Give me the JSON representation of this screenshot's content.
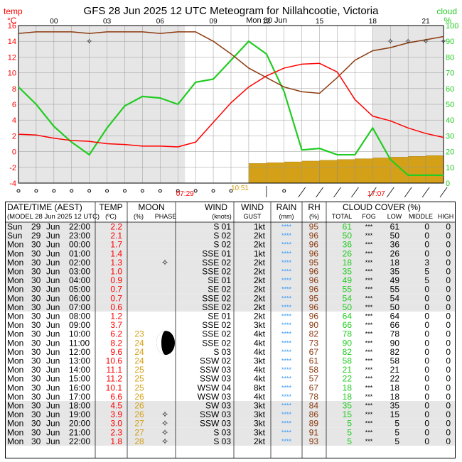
{
  "colors": {
    "temp": "#ff0000",
    "rh": "#8b3a0f",
    "cloud": "#22cc22",
    "rain": "#d4a017",
    "moon": "#d4a017",
    "rainStars": "#3399ff",
    "shade": "#e6e6e6",
    "frame": "#000000"
  },
  "chart_data": {
    "type": "line",
    "title": "GFS  28 Jun 2025 12 UTC  Meteogram for Nillahcootie, Victoria",
    "date_label": "Mon 30 Jun",
    "left_axis": {
      "label1": "temp",
      "label2": "°C",
      "ticks": [
        16,
        14,
        12,
        10,
        8,
        6,
        4,
        2,
        0,
        -2,
        -4
      ],
      "ylim": [
        -4,
        16
      ]
    },
    "right_axis": {
      "label1": "cloud",
      "label2": "%",
      "ticks": [
        100,
        90,
        80,
        70,
        60,
        50,
        40,
        30,
        20,
        10,
        0
      ],
      "ylim": [
        0,
        100
      ]
    },
    "x_ticks": [
      "00",
      "03",
      "06",
      "09",
      "12",
      "15",
      "18",
      "21"
    ],
    "x_tick_hours": [
      2,
      5,
      8,
      11,
      14,
      17,
      20,
      23
    ],
    "moonrise": "07:29",
    "moonset": "10:51",
    "sunset": "17:07",
    "hours": [
      0,
      1,
      2,
      3,
      4,
      5,
      6,
      7,
      8,
      9,
      10,
      11,
      12,
      13,
      14,
      15,
      16,
      17,
      18,
      19,
      20,
      21,
      22,
      23,
      24
    ],
    "series": [
      {
        "name": "temp",
        "values": [
          2.2,
          2.1,
          1.7,
          1.4,
          1.3,
          1.0,
          0.9,
          0.7,
          0.7,
          0.6,
          1.2,
          3.7,
          6.2,
          8.2,
          9.6,
          10.6,
          11.1,
          11.2,
          10.1,
          6.6,
          4.5,
          3.9,
          3.0,
          2.3,
          1.8
        ]
      },
      {
        "name": "rh",
        "values": [
          95,
          96,
          96,
          96,
          95,
          96,
          96,
          96,
          95,
          96,
          96,
          90,
          82,
          73,
          67,
          61,
          58,
          57,
          67,
          78,
          84,
          86,
          89,
          91,
          93
        ]
      },
      {
        "name": "cloud",
        "values": [
          61,
          50,
          36,
          26,
          18,
          35,
          49,
          55,
          54,
          50,
          64,
          66,
          78,
          90,
          82,
          58,
          21,
          22,
          18,
          18,
          35,
          15,
          5,
          5,
          5
        ]
      },
      {
        "name": "rain",
        "values": [
          0,
          0,
          0,
          0,
          0,
          0,
          0,
          0,
          0,
          0,
          0,
          0,
          0,
          2.5,
          2.6,
          2.7,
          2.8,
          2.9,
          3.0,
          3.1,
          3.2,
          3.3,
          3.4,
          3.5,
          3.6
        ]
      }
    ],
    "sky_symbols": [
      "circle",
      "circle",
      "circle",
      "circle",
      "circle",
      "circle",
      "circle",
      "circle",
      "circle",
      "circle",
      "circle",
      "circle",
      "circle",
      "none",
      "none",
      "circle",
      "none",
      "none",
      "none",
      "none",
      "none",
      "none",
      "none",
      "none",
      "none"
    ],
    "wind_barbs": [
      "none",
      "none",
      "none",
      "none",
      "none",
      "none",
      "none",
      "none",
      "none",
      "none",
      "none",
      "none",
      "none",
      "none",
      "north",
      "none",
      "ne",
      "ne",
      "ne",
      "ne",
      "ne",
      "ne",
      "ne",
      "ne",
      "ne"
    ]
  },
  "table": {
    "header1": {
      "datetime": "DATE/TIME (AEST)",
      "temp": "TEMP",
      "moon": "MOON",
      "wind": "WIND",
      "wind2": "WIND",
      "rain": "RAIN",
      "rh": "RH",
      "cloud": "CLOUD COVER (%)"
    },
    "header2": {
      "model": "(MODEL 28 Jun 2025 12 UTC)",
      "temp_unit": "(ºC)",
      "moon_pct": "(%)",
      "moon_phase": "PHASE",
      "wind_unit": "(knots)",
      "gust": "GUST",
      "rain_unit": "(mm)",
      "rh_unit": "(%)",
      "total": "TOTAL",
      "fog": "FOG",
      "low": "LOW",
      "middle": "MIDDLE",
      "high": "HIGH"
    },
    "rows": [
      {
        "day": "Sun",
        "d": "29",
        "mon": "Jun",
        "time": "22:00",
        "temp": "2.2",
        "moon": "",
        "wind": "S 01",
        "gust": "1kt",
        "rain": "****",
        "rh": "95",
        "total": "61",
        "fog": "***",
        "low": "61",
        "mid": "0",
        "high": "0",
        "shade": true,
        "symbol": ""
      },
      {
        "day": "Sun",
        "d": "29",
        "mon": "Jun",
        "time": "23:00",
        "temp": "2.1",
        "moon": "",
        "wind": "S 02",
        "gust": "2kt",
        "rain": "****",
        "rh": "96",
        "total": "50",
        "fog": "***",
        "low": "50",
        "mid": "0",
        "high": "0",
        "shade": true,
        "symbol": ""
      },
      {
        "day": "Mon",
        "d": "30",
        "mon": "Jun",
        "time": "00:00",
        "temp": "1.7",
        "moon": "",
        "wind": "S 02",
        "gust": "2kt",
        "rain": "****",
        "rh": "96",
        "total": "36",
        "fog": "***",
        "low": "36",
        "mid": "0",
        "high": "0",
        "shade": true,
        "symbol": ""
      },
      {
        "day": "Mon",
        "d": "30",
        "mon": "Jun",
        "time": "01:00",
        "temp": "1.4",
        "moon": "",
        "wind": "SSE 01",
        "gust": "1kt",
        "rain": "****",
        "rh": "96",
        "total": "26",
        "fog": "***",
        "low": "26",
        "mid": "0",
        "high": "0",
        "shade": true,
        "symbol": ""
      },
      {
        "day": "Mon",
        "d": "30",
        "mon": "Jun",
        "time": "02:00",
        "temp": "1.3",
        "moon": "",
        "wind": "SSE 02",
        "gust": "2kt",
        "rain": "****",
        "rh": "95",
        "total": "18",
        "fog": "***",
        "low": "18",
        "mid": "3",
        "high": "0",
        "shade": true,
        "symbol": "star"
      },
      {
        "day": "Mon",
        "d": "30",
        "mon": "Jun",
        "time": "03:00",
        "temp": "1.0",
        "moon": "",
        "wind": "SSE 02",
        "gust": "2kt",
        "rain": "****",
        "rh": "96",
        "total": "35",
        "fog": "***",
        "low": "35",
        "mid": "5",
        "high": "0",
        "shade": true,
        "symbol": ""
      },
      {
        "day": "Mon",
        "d": "30",
        "mon": "Jun",
        "time": "04:00",
        "temp": "0.9",
        "moon": "",
        "wind": "SE 01",
        "gust": "2kt",
        "rain": "****",
        "rh": "96",
        "total": "49",
        "fog": "***",
        "low": "49",
        "mid": "5",
        "high": "0",
        "shade": true,
        "symbol": ""
      },
      {
        "day": "Mon",
        "d": "30",
        "mon": "Jun",
        "time": "05:00",
        "temp": "0.7",
        "moon": "",
        "wind": "SE 02",
        "gust": "2kt",
        "rain": "****",
        "rh": "96",
        "total": "55",
        "fog": "***",
        "low": "55",
        "mid": "0",
        "high": "0",
        "shade": true,
        "symbol": ""
      },
      {
        "day": "Mon",
        "d": "30",
        "mon": "Jun",
        "time": "06:00",
        "temp": "0.7",
        "moon": "",
        "wind": "SSE 02",
        "gust": "2kt",
        "rain": "****",
        "rh": "95",
        "total": "54",
        "fog": "***",
        "low": "54",
        "mid": "0",
        "high": "0",
        "shade": true,
        "symbol": ""
      },
      {
        "day": "Mon",
        "d": "30",
        "mon": "Jun",
        "time": "07:00",
        "temp": "0.6",
        "moon": "",
        "wind": "SSE 02",
        "gust": "2kt",
        "rain": "****",
        "rh": "96",
        "total": "50",
        "fog": "***",
        "low": "50",
        "mid": "0",
        "high": "0",
        "shade": true,
        "symbol": ""
      },
      {
        "day": "Mon",
        "d": "30",
        "mon": "Jun",
        "time": "08:00",
        "temp": "1.2",
        "moon": "",
        "wind": "SE 01",
        "gust": "2kt",
        "rain": "****",
        "rh": "96",
        "total": "64",
        "fog": "***",
        "low": "64",
        "mid": "0",
        "high": "0",
        "shade": false,
        "symbol": ""
      },
      {
        "day": "Mon",
        "d": "30",
        "mon": "Jun",
        "time": "09:00",
        "temp": "3.7",
        "moon": "",
        "wind": "SSE 02",
        "gust": "3kt",
        "rain": "****",
        "rh": "90",
        "total": "66",
        "fog": "***",
        "low": "66",
        "mid": "0",
        "high": "0",
        "shade": false,
        "symbol": ""
      },
      {
        "day": "Mon",
        "d": "30",
        "mon": "Jun",
        "time": "10:00",
        "temp": "6.2",
        "moon": "23",
        "wind": "SSE 02",
        "gust": "4kt",
        "rain": "****",
        "rh": "82",
        "total": "78",
        "fog": "***",
        "low": "78",
        "mid": "0",
        "high": "0",
        "shade": false,
        "symbol": ""
      },
      {
        "day": "Mon",
        "d": "30",
        "mon": "Jun",
        "time": "11:00",
        "temp": "8.2",
        "moon": "24",
        "wind": "SSE 02",
        "gust": "4kt",
        "rain": "****",
        "rh": "73",
        "total": "90",
        "fog": "***",
        "low": "90",
        "mid": "0",
        "high": "0",
        "shade": false,
        "symbol": ""
      },
      {
        "day": "Mon",
        "d": "30",
        "mon": "Jun",
        "time": "12:00",
        "temp": "9.6",
        "moon": "24",
        "wind": "S 03",
        "gust": "4kt",
        "rain": "****",
        "rh": "67",
        "total": "82",
        "fog": "***",
        "low": "82",
        "mid": "0",
        "high": "0",
        "shade": false,
        "symbol": ""
      },
      {
        "day": "Mon",
        "d": "30",
        "mon": "Jun",
        "time": "13:00",
        "temp": "10.6",
        "moon": "24",
        "wind": "SSW 02",
        "gust": "3kt",
        "rain": "****",
        "rh": "61",
        "total": "58",
        "fog": "***",
        "low": "58",
        "mid": "0",
        "high": "0",
        "shade": false,
        "symbol": ""
      },
      {
        "day": "Mon",
        "d": "30",
        "mon": "Jun",
        "time": "14:00",
        "temp": "11.1",
        "moon": "25",
        "wind": "SSW 03",
        "gust": "4kt",
        "rain": "****",
        "rh": "58",
        "total": "21",
        "fog": "***",
        "low": "21",
        "mid": "0",
        "high": "0",
        "shade": false,
        "symbol": ""
      },
      {
        "day": "Mon",
        "d": "30",
        "mon": "Jun",
        "time": "15:00",
        "temp": "11.2",
        "moon": "25",
        "wind": "SSW 03",
        "gust": "4kt",
        "rain": "****",
        "rh": "57",
        "total": "22",
        "fog": "***",
        "low": "22",
        "mid": "0",
        "high": "0",
        "shade": false,
        "symbol": ""
      },
      {
        "day": "Mon",
        "d": "30",
        "mon": "Jun",
        "time": "16:00",
        "temp": "10.1",
        "moon": "25",
        "wind": "WSW 04",
        "gust": "8kt",
        "rain": "****",
        "rh": "67",
        "total": "18",
        "fog": "***",
        "low": "18",
        "mid": "0",
        "high": "0",
        "shade": false,
        "symbol": ""
      },
      {
        "day": "Mon",
        "d": "30",
        "mon": "Jun",
        "time": "17:00",
        "temp": "6.6",
        "moon": "26",
        "wind": "WSW 03",
        "gust": "4kt",
        "rain": "****",
        "rh": "78",
        "total": "18",
        "fog": "***",
        "low": "18",
        "mid": "0",
        "high": "0",
        "shade": false,
        "symbol": ""
      },
      {
        "day": "Mon",
        "d": "30",
        "mon": "Jun",
        "time": "18:00",
        "temp": "4.5",
        "moon": "26",
        "wind": "SW 03",
        "gust": "3kt",
        "rain": "****",
        "rh": "84",
        "total": "35",
        "fog": "***",
        "low": "35",
        "mid": "0",
        "high": "0",
        "shade": true,
        "symbol": ""
      },
      {
        "day": "Mon",
        "d": "30",
        "mon": "Jun",
        "time": "19:00",
        "temp": "3.9",
        "moon": "26",
        "wind": "SSW 03",
        "gust": "3kt",
        "rain": "****",
        "rh": "86",
        "total": "15",
        "fog": "***",
        "low": "15",
        "mid": "0",
        "high": "0",
        "shade": true,
        "symbol": "star"
      },
      {
        "day": "Mon",
        "d": "30",
        "mon": "Jun",
        "time": "20:00",
        "temp": "3.0",
        "moon": "27",
        "wind": "SSW 03",
        "gust": "3kt",
        "rain": "****",
        "rh": "89",
        "total": "5",
        "fog": "***",
        "low": "5",
        "mid": "0",
        "high": "0",
        "shade": true,
        "symbol": "star"
      },
      {
        "day": "Mon",
        "d": "30",
        "mon": "Jun",
        "time": "21:00",
        "temp": "2.3",
        "moon": "27",
        "wind": "S 03",
        "gust": "3kt",
        "rain": "****",
        "rh": "91",
        "total": "5",
        "fog": "***",
        "low": "5",
        "mid": "0",
        "high": "0",
        "shade": true,
        "symbol": "star"
      },
      {
        "day": "Mon",
        "d": "30",
        "mon": "Jun",
        "time": "22:00",
        "temp": "1.8",
        "moon": "28",
        "wind": "S 03",
        "gust": "2kt",
        "rain": "****",
        "rh": "93",
        "total": "5",
        "fog": "***",
        "low": "5",
        "mid": "0",
        "high": "0",
        "shade": true,
        "symbol": "star"
      }
    ]
  }
}
